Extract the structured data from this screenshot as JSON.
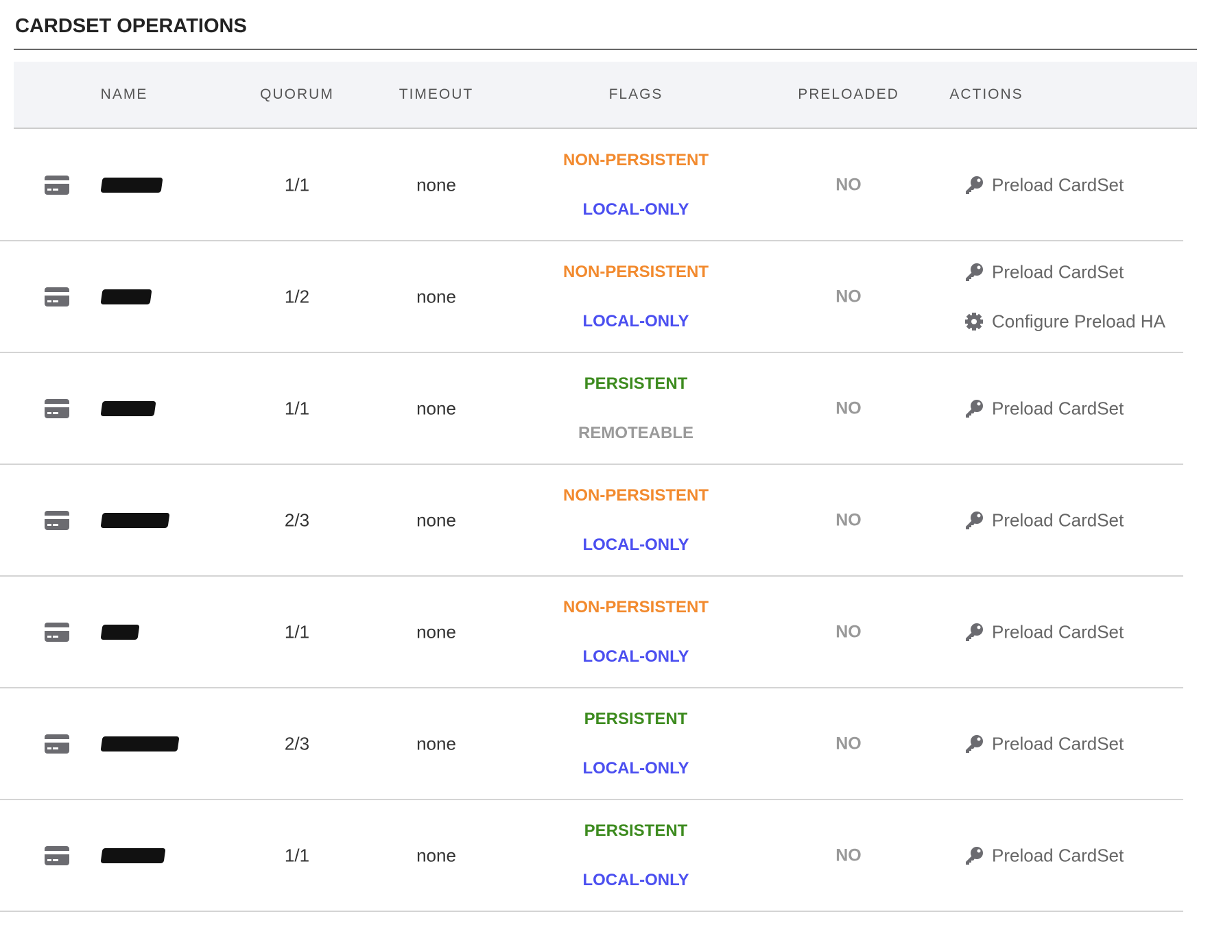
{
  "title": "CARDSET OPERATIONS",
  "table": {
    "columns": [
      "NAME",
      "QUORUM",
      "TIMEOUT",
      "FLAGS",
      "PRELOADED",
      "ACTIONS"
    ],
    "rows": [
      {
        "quorum": "1/1",
        "timeout": "none",
        "flags": [
          {
            "text": "NON-PERSISTENT",
            "color": "#f28a2e"
          },
          {
            "text": "LOCAL-ONLY",
            "color": "#4b4ff0"
          }
        ],
        "preloaded": "NO",
        "actions": [
          "Preload CardSet"
        ]
      },
      {
        "quorum": "1/2",
        "timeout": "none",
        "flags": [
          {
            "text": "NON-PERSISTENT",
            "color": "#f28a2e"
          },
          {
            "text": "LOCAL-ONLY",
            "color": "#4b4ff0"
          }
        ],
        "preloaded": "NO",
        "actions": [
          "Preload CardSet",
          "Configure Preload HA"
        ]
      },
      {
        "quorum": "1/1",
        "timeout": "none",
        "flags": [
          {
            "text": "PERSISTENT",
            "color": "#3d8b1f"
          },
          {
            "text": "REMOTEABLE",
            "color": "#9a9a9a"
          }
        ],
        "preloaded": "NO",
        "actions": [
          "Preload CardSet"
        ]
      },
      {
        "quorum": "2/3",
        "timeout": "none",
        "flags": [
          {
            "text": "NON-PERSISTENT",
            "color": "#f28a2e"
          },
          {
            "text": "LOCAL-ONLY",
            "color": "#4b4ff0"
          }
        ],
        "preloaded": "NO",
        "actions": [
          "Preload CardSet"
        ]
      },
      {
        "quorum": "1/1",
        "timeout": "none",
        "flags": [
          {
            "text": "NON-PERSISTENT",
            "color": "#f28a2e"
          },
          {
            "text": "LOCAL-ONLY",
            "color": "#4b4ff0"
          }
        ],
        "preloaded": "NO",
        "actions": [
          "Preload CardSet"
        ]
      },
      {
        "quorum": "2/3",
        "timeout": "none",
        "flags": [
          {
            "text": "PERSISTENT",
            "color": "#3d8b1f"
          },
          {
            "text": "LOCAL-ONLY",
            "color": "#4b4ff0"
          }
        ],
        "preloaded": "NO",
        "actions": [
          "Preload CardSet"
        ]
      },
      {
        "quorum": "1/1",
        "timeout": "none",
        "flags": [
          {
            "text": "PERSISTENT",
            "color": "#3d8b1f"
          },
          {
            "text": "LOCAL-ONLY",
            "color": "#4b4ff0"
          }
        ],
        "preloaded": "NO",
        "actions": [
          "Preload CardSet"
        ]
      }
    ]
  }
}
